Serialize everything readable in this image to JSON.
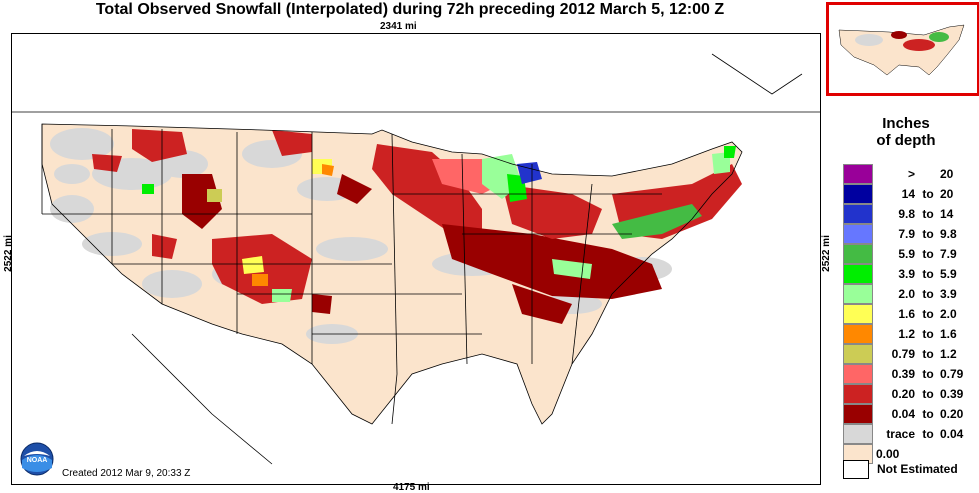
{
  "title": "Total Observed Snowfall (Interpolated) during 72h preceding 2012 March 5, 12:00 Z",
  "distances": {
    "top": "2341 mi",
    "bottom": "4175 mi",
    "left": "2522 mi",
    "right": "2522 mi"
  },
  "legend": {
    "title_line1": "Inches",
    "title_line2": "of depth",
    "to_word": "to",
    "rows": [
      {
        "low": ">",
        "high": "20",
        "color": "#990099"
      },
      {
        "low": "14",
        "high": "20",
        "color": "#0000a0"
      },
      {
        "low": "9.8",
        "high": "14",
        "color": "#2233cc"
      },
      {
        "low": "7.9",
        "high": "9.8",
        "color": "#6677ff"
      },
      {
        "low": "5.9",
        "high": "7.9",
        "color": "#44bb44"
      },
      {
        "low": "3.9",
        "high": "5.9",
        "color": "#00ee00"
      },
      {
        "low": "2.0",
        "high": "3.9",
        "color": "#99ff99"
      },
      {
        "low": "1.6",
        "high": "2.0",
        "color": "#ffff55"
      },
      {
        "low": "1.2",
        "high": "1.6",
        "color": "#ff8800"
      },
      {
        "low": "0.79",
        "high": "1.2",
        "color": "#cccc55"
      },
      {
        "low": "0.39",
        "high": "0.79",
        "color": "#ff6666"
      },
      {
        "low": "0.20",
        "high": "0.39",
        "color": "#cc2222"
      },
      {
        "low": "0.04",
        "high": "0.20",
        "color": "#990000"
      },
      {
        "low": "trace",
        "high": "0.04",
        "color": "#d8d8d8"
      }
    ],
    "zero_label": "0.00",
    "zero_color": "#fbe4cc",
    "not_estimated": "Not Estimated"
  },
  "created": "Created 2012 Mar 9, 20:33 Z",
  "logo_text": "NOAA",
  "colors": {
    "inset_border": "#e00000",
    "bare_ground": "#fbe4cc",
    "trace": "#d8d8d8"
  }
}
